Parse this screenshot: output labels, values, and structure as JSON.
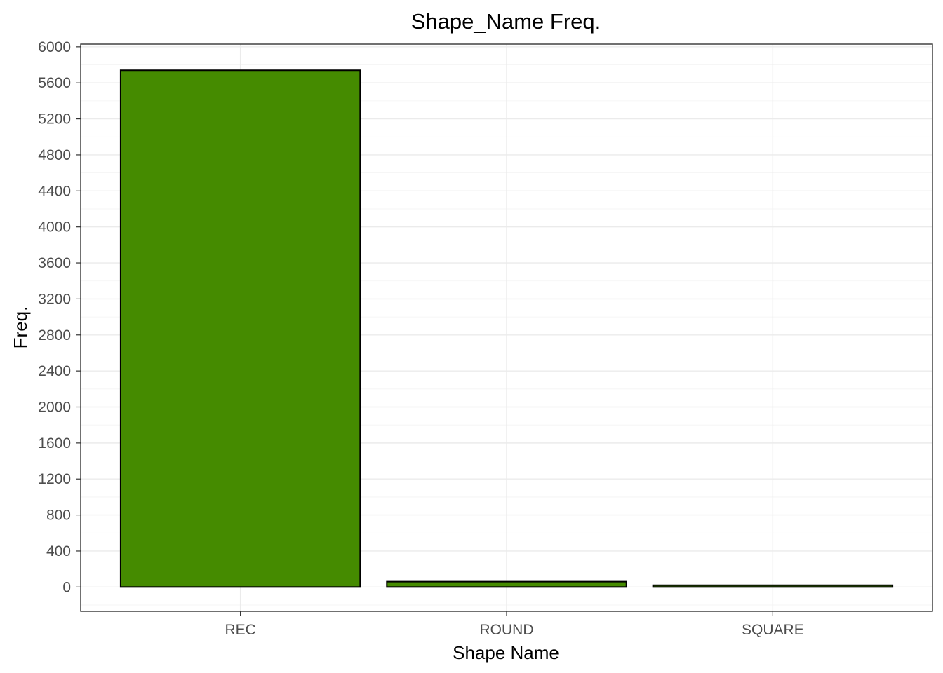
{
  "chart_data": {
    "type": "bar",
    "title": "Shape_Name Freq.",
    "xlabel": "Shape Name",
    "ylabel": "Freq.",
    "categories": [
      "REC",
      "ROUND",
      "SQUARE"
    ],
    "values": [
      5740,
      60,
      20
    ],
    "ylim": [
      -270,
      6030
    ],
    "yticks": [
      0,
      400,
      800,
      1200,
      1600,
      2000,
      2400,
      2800,
      3200,
      3600,
      4000,
      4400,
      4800,
      5200,
      5600,
      6000
    ],
    "grid": true,
    "bar_color": "#458B00",
    "bar_outline": "#000000"
  }
}
